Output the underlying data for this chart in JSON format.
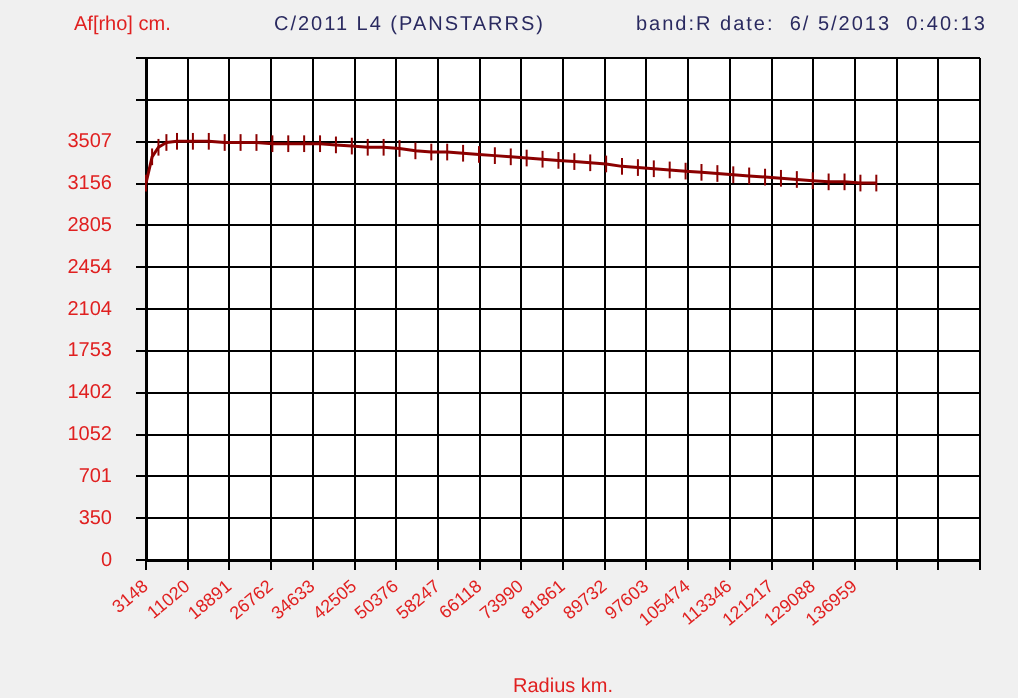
{
  "chart_data": {
    "type": "line",
    "title": "C/2011 L4 (PANSTARRS)",
    "subtitle": "band:R date:  6/ 5/2013  0:40:13",
    "ylabel": "Af[rho] cm.",
    "xlabel": "Radius km.",
    "x": [
      3148,
      4300,
      5500,
      7000,
      9000,
      12000,
      15000,
      18000,
      21000,
      24000,
      27000,
      30000,
      33000,
      36000,
      39000,
      42000,
      45000,
      48000,
      51000,
      54000,
      57000,
      60000,
      63000,
      66000,
      69000,
      72000,
      75000,
      78000,
      81000,
      84000,
      87000,
      90000,
      93000,
      96000,
      99000,
      102000,
      105000,
      108000,
      111000,
      114000,
      117000,
      120000,
      123000,
      126000,
      129000,
      132000,
      135000,
      138000,
      141000
    ],
    "series": [
      {
        "color": "#8b0000",
        "values": [
          3160,
          3380,
          3460,
          3500,
          3510,
          3510,
          3510,
          3500,
          3500,
          3500,
          3490,
          3490,
          3490,
          3490,
          3480,
          3470,
          3460,
          3460,
          3450,
          3430,
          3420,
          3420,
          3410,
          3400,
          3390,
          3380,
          3370,
          3360,
          3350,
          3340,
          3330,
          3320,
          3300,
          3290,
          3280,
          3270,
          3260,
          3250,
          3240,
          3230,
          3220,
          3210,
          3200,
          3190,
          3180,
          3170,
          3170,
          3160,
          3160
        ],
        "errors": [
          70,
          70,
          70,
          70,
          70,
          70,
          70,
          70,
          70,
          70,
          70,
          70,
          70,
          70,
          70,
          70,
          70,
          70,
          70,
          70,
          70,
          70,
          70,
          70,
          70,
          70,
          70,
          70,
          70,
          70,
          70,
          70,
          70,
          70,
          70,
          70,
          70,
          70,
          70,
          70,
          70,
          70,
          70,
          70,
          70,
          70,
          70,
          70,
          70
        ]
      }
    ],
    "xlim": [
      3148,
      160572
    ],
    "xticks": [
      3148,
      11020,
      18891,
      26762,
      34633,
      42505,
      50376,
      58247,
      66118,
      73990,
      81861,
      89732,
      97603,
      105474,
      113346,
      121217,
      129088,
      136959,
      {
        "value": 144830,
        "label": null
      },
      {
        "value": 152701,
        "label": null
      },
      {
        "value": 160572,
        "label": null
      }
    ],
    "ylim": [
      0,
      4208.4
    ],
    "yticks": [
      0,
      350,
      701,
      1052,
      1402,
      1753,
      2104,
      2454,
      2805,
      3156,
      3507,
      {
        "value": 3857.7,
        "label": null
      },
      {
        "value": 4208.4,
        "label": null
      }
    ],
    "grid": true,
    "legend": false,
    "marker": "none",
    "line_style": "solid"
  }
}
